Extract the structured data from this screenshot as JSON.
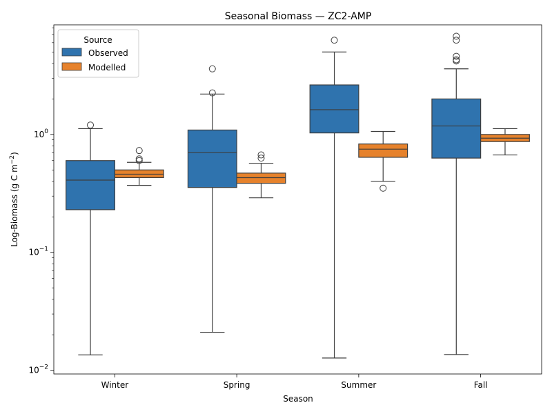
{
  "chart_data": {
    "type": "box",
    "title": "Seasonal Biomass — ZC2-AMP",
    "xlabel": "Season",
    "ylabel_main": "Log-Biomass (g C m",
    "ylabel_sup": "−2",
    "ylabel_close": ")",
    "yscale": "log",
    "ylim": [
      0.0093,
      8.5
    ],
    "categories": [
      "Winter",
      "Spring",
      "Summer",
      "Fall"
    ],
    "y_ticks": [
      {
        "value": 0.01,
        "base": "10",
        "exp": "−2"
      },
      {
        "value": 0.1,
        "base": "10",
        "exp": "−1"
      },
      {
        "value": 1,
        "base": "10",
        "exp": "0"
      }
    ],
    "legend": {
      "title": "Source",
      "placement": "upper-left",
      "entries": [
        "Observed",
        "Modelled"
      ]
    },
    "series": [
      {
        "name": "Observed",
        "color": "#2f73ae",
        "boxes": [
          {
            "whisker_low": 0.0135,
            "q1": 0.23,
            "median": 0.41,
            "q3": 0.6,
            "whisker_high": 1.12,
            "outliers": [
              1.2
            ]
          },
          {
            "whisker_low": 0.021,
            "q1": 0.355,
            "median": 0.7,
            "q3": 1.09,
            "whisker_high": 2.2,
            "outliers": [
              2.25,
              3.6
            ]
          },
          {
            "whisker_low": 0.0127,
            "q1": 1.03,
            "median": 1.62,
            "q3": 2.63,
            "whisker_high": 5.0,
            "outliers": [
              6.3
            ]
          },
          {
            "whisker_low": 0.0136,
            "q1": 0.63,
            "median": 1.18,
            "q3": 2.0,
            "whisker_high": 3.6,
            "outliers": [
              4.2,
              4.3,
              4.6,
              6.3,
              6.8
            ]
          }
        ]
      },
      {
        "name": "Modelled",
        "color": "#e6822c",
        "boxes": [
          {
            "whisker_low": 0.37,
            "q1": 0.43,
            "median": 0.46,
            "q3": 0.5,
            "whisker_high": 0.58,
            "outliers": [
              0.6,
              0.62,
              0.73
            ]
          },
          {
            "whisker_low": 0.29,
            "q1": 0.385,
            "median": 0.43,
            "q3": 0.47,
            "whisker_high": 0.57,
            "outliers": [
              0.63,
              0.67
            ]
          },
          {
            "whisker_low": 0.4,
            "q1": 0.64,
            "median": 0.75,
            "q3": 0.83,
            "whisker_high": 1.06,
            "outliers": [
              0.35
            ]
          },
          {
            "whisker_low": 0.67,
            "q1": 0.87,
            "median": 0.93,
            "q3": 1.0,
            "whisker_high": 1.12,
            "outliers": []
          }
        ]
      }
    ]
  }
}
